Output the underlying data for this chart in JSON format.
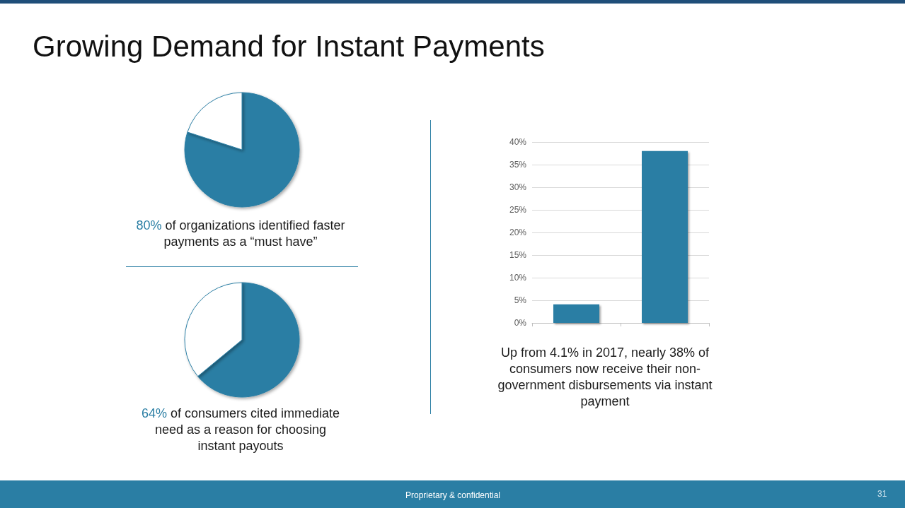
{
  "chart_data": [
    {
      "type": "pie",
      "title": "Growing Demand for Instant Payments",
      "categories": [
        null,
        null
      ],
      "values": [
        80,
        20
      ],
      "colors": [
        "#2a7ea4",
        "#ffffff"
      ],
      "annotations": [
        "80% of organizations identified faster payments as a “must have”"
      ]
    },
    {
      "type": "pie",
      "categories": [
        null,
        null
      ],
      "values": [
        64,
        36
      ],
      "colors": [
        "#2a7ea4",
        "#ffffff"
      ],
      "annotations": [
        "64% of consumers cited immediate need as a reason for choosing instant payouts"
      ]
    },
    {
      "type": "bar",
      "categories": [
        null,
        null
      ],
      "values": [
        4.1,
        38
      ],
      "color": "#2a7ea4",
      "ylim": [
        0,
        40
      ],
      "yticks": [
        {
          "value": 0,
          "label": "0%"
        },
        {
          "value": 5,
          "label": "5%"
        },
        {
          "value": 10,
          "label": "10%"
        },
        {
          "value": 15,
          "label": "15%"
        },
        {
          "value": 20,
          "label": "20%"
        },
        {
          "value": 25,
          "label": "25%"
        },
        {
          "value": 30,
          "label": "30%"
        },
        {
          "value": 35,
          "label": "35%"
        },
        {
          "value": 40,
          "label": "40%"
        }
      ],
      "grid": "y",
      "tick_labels": "y",
      "annotations": [
        "Up from 4.1% in 2017, nearly 38% of consumers now receive their non-government disbursements via instant payment",
        "Proprietary & confidential",
        "31"
      ]
    }
  ]
}
